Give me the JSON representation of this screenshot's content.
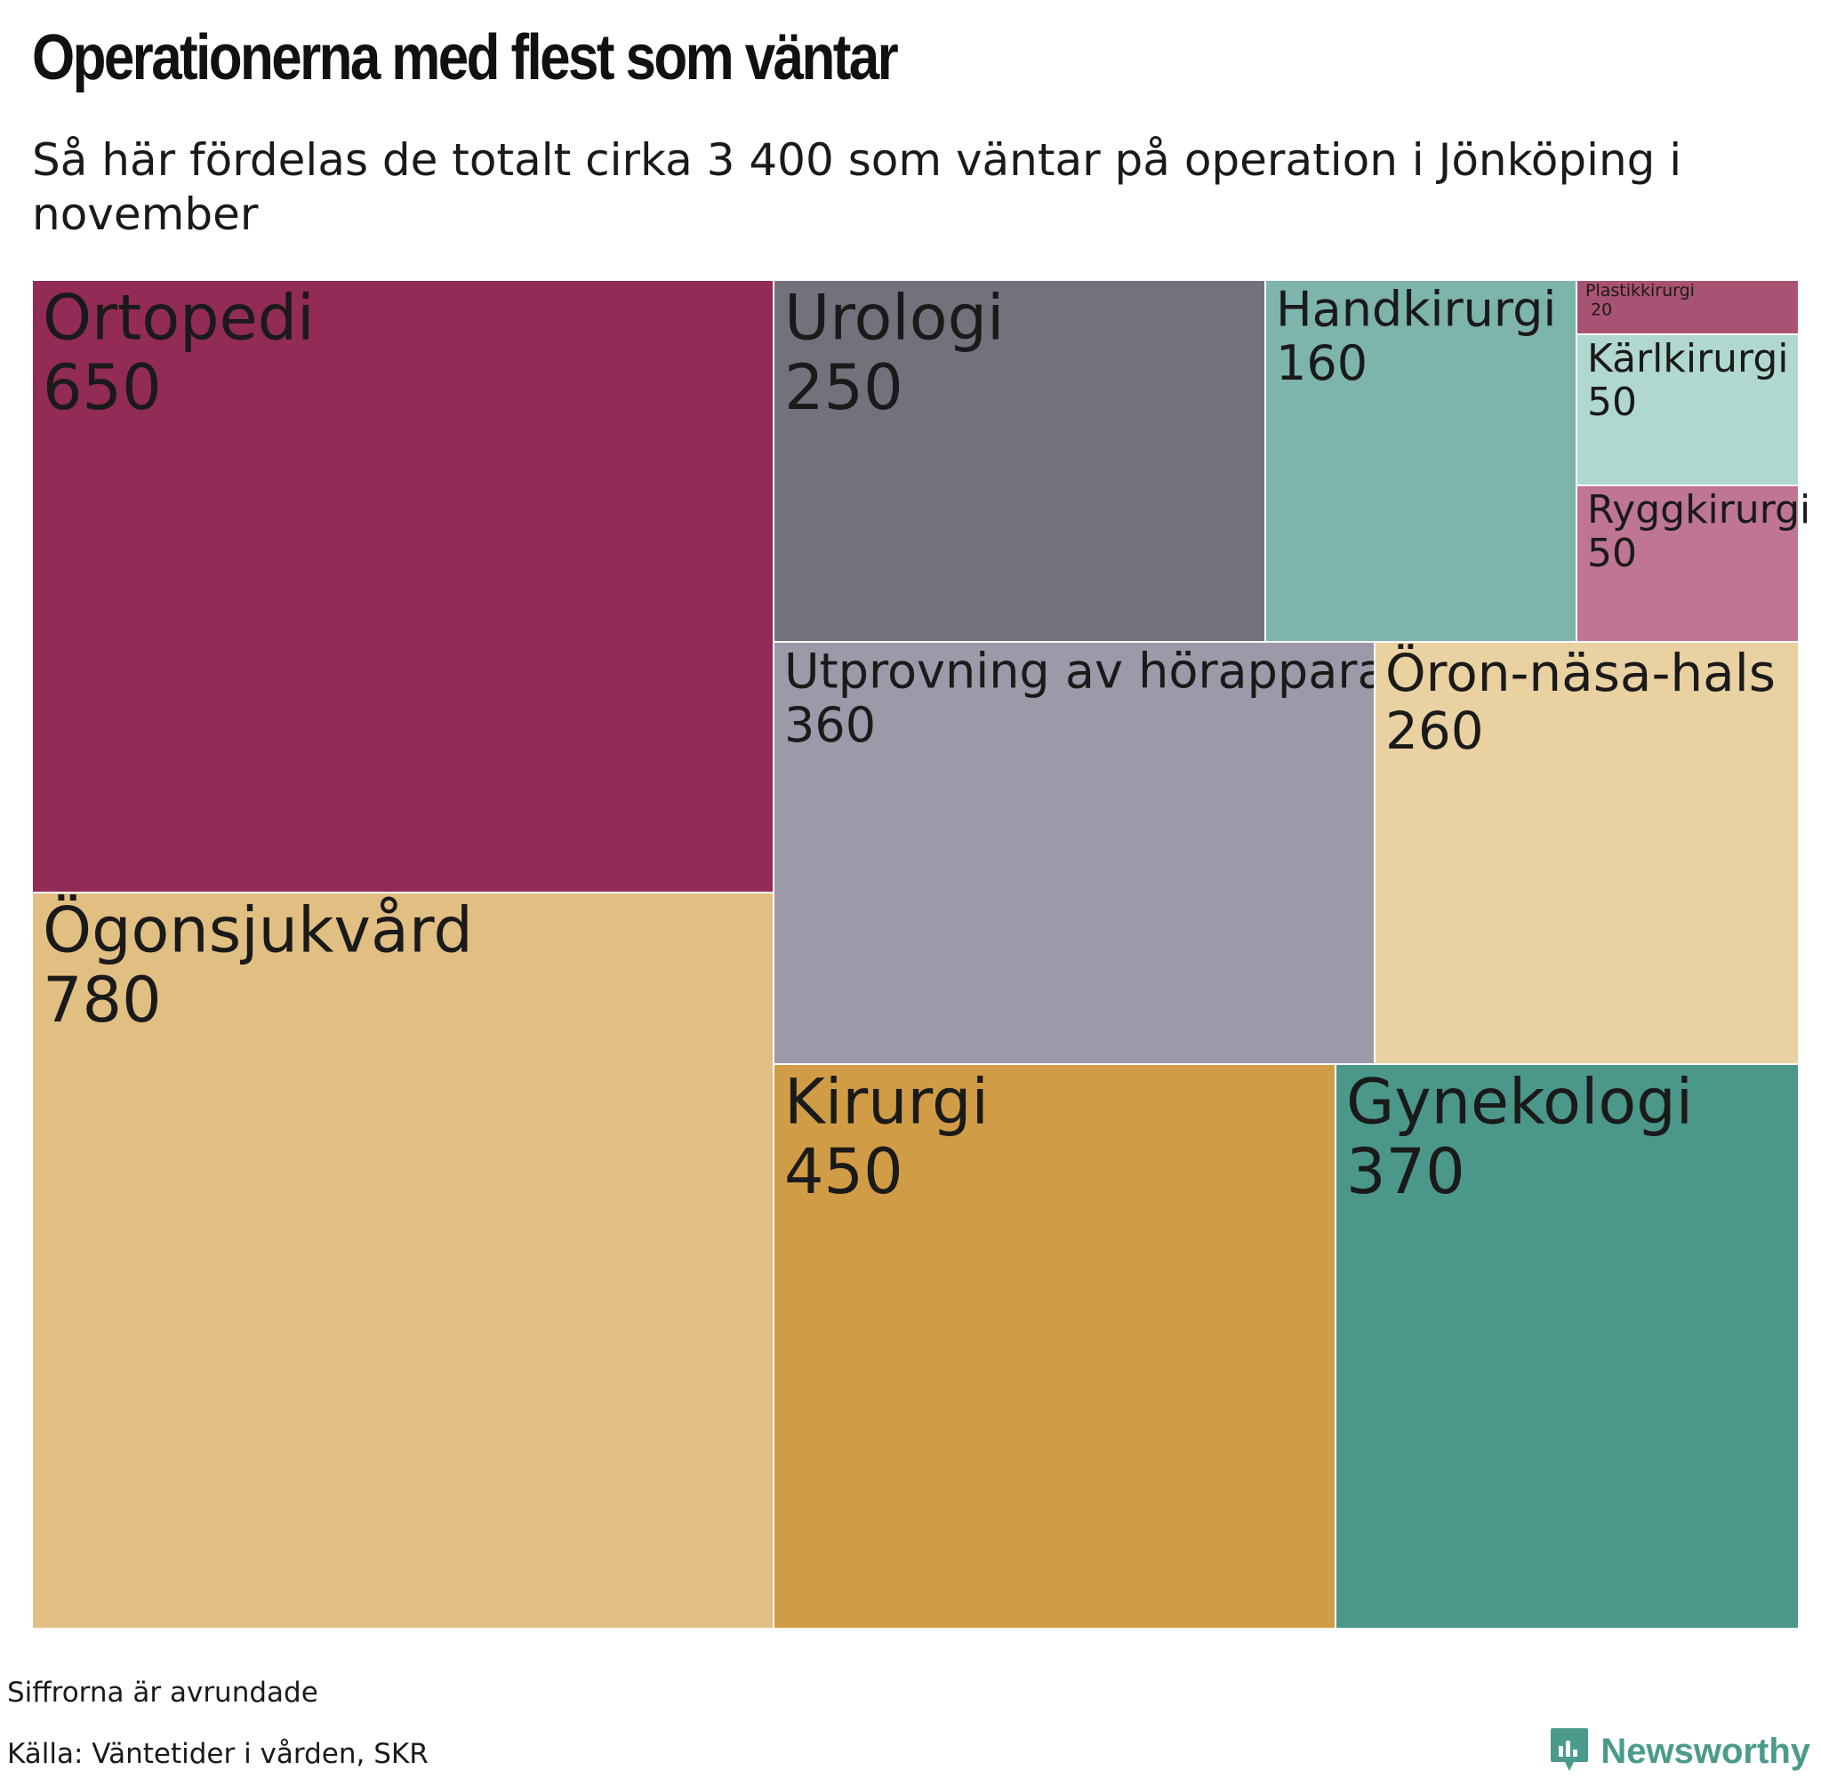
{
  "title": "Operationerna med flest som väntar",
  "subtitle": "Så här fördelas de totalt cirka 3 400 som väntar på operation i Jönköping i november",
  "note": "Siffrorna är avrundade",
  "source": "Källa: Väntetider i vården, SKR",
  "brand": {
    "name": "Newsworthy",
    "color": "#4a9b8c"
  },
  "chart_data": {
    "type": "treemap",
    "items": [
      {
        "name": "Ortopedi",
        "value": 650,
        "color": "#922b56"
      },
      {
        "name": "Ögonsjukvård",
        "value": 780,
        "color": "#e1be82"
      },
      {
        "name": "Urologi",
        "value": 250,
        "color": "#74717d"
      },
      {
        "name": "Handkirurgi",
        "value": 160,
        "color": "#7db4ab"
      },
      {
        "name": "Plastikkirurgi",
        "value": 20,
        "color": "#a85373"
      },
      {
        "name": "Kärlkirurgi",
        "value": 50,
        "color": "#b0d8d0"
      },
      {
        "name": "Ryggkirurgi",
        "value": 50,
        "color": "#bf7594"
      },
      {
        "name": "Utprovning av hörapparat",
        "value": 360,
        "color": "#9c9aa8"
      },
      {
        "name": "Öron-näsa-hals",
        "value": 260,
        "color": "#e9d1a1"
      },
      {
        "name": "Kirurgi",
        "value": 450,
        "color": "#d09c46"
      },
      {
        "name": "Gynekologi",
        "value": 370,
        "color": "#4b978a"
      }
    ]
  }
}
